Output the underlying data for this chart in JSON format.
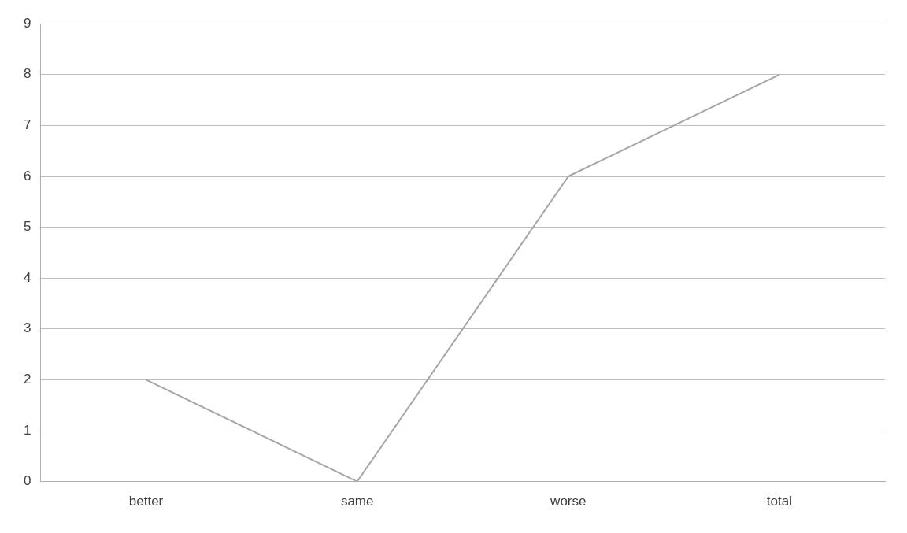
{
  "chart_data": {
    "type": "line",
    "categories": [
      "better",
      "same",
      "worse",
      "total"
    ],
    "series": [
      {
        "color": "#a6a6a6",
        "values": [
          2,
          0,
          6,
          8
        ]
      }
    ],
    "ylim": [
      0,
      9
    ],
    "yticks": [
      0,
      1,
      2,
      3,
      4,
      5,
      6,
      7,
      8,
      9
    ],
    "grid": "y",
    "legend": false,
    "marker": "none"
  }
}
